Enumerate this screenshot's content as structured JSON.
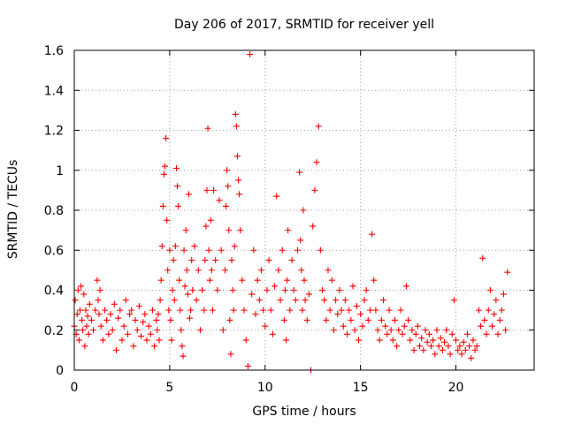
{
  "chart_data": {
    "type": "scatter",
    "title": "Day 206 of 2017, SRMTID for receiver yell",
    "xlabel": "GPS time / hours",
    "ylabel": "SRMTID / TECUs",
    "xlim": [
      0,
      24.1
    ],
    "ylim": [
      0,
      1.6
    ],
    "x_ticks": [
      0,
      5,
      10,
      15,
      20
    ],
    "x_tick_labels": [
      "0",
      "5",
      "10",
      "15",
      "20"
    ],
    "y_ticks": [
      0,
      0.2,
      0.4,
      0.6,
      0.8,
      1.0,
      1.2,
      1.4,
      1.6
    ],
    "y_tick_labels": [
      "0",
      "0.2",
      "0.4",
      "0.6",
      "0.8",
      "1",
      "1.2",
      "1.4",
      "1.6"
    ],
    "grid": true,
    "marker": "+",
    "color": "#ff0000",
    "series": [
      {
        "name": "SRMTID",
        "x": [
          0.0,
          0.05,
          0.1,
          0.15,
          0.2,
          0.25,
          0.3,
          0.35,
          0.4,
          0.45,
          0.5,
          0.55,
          0.6,
          0.65,
          0.7,
          0.75,
          0.8,
          0.9,
          1.0,
          1.1,
          1.2,
          1.25,
          1.3,
          1.35,
          1.4,
          1.5,
          1.6,
          1.7,
          1.8,
          1.9,
          2.0,
          2.1,
          2.2,
          2.3,
          2.4,
          2.5,
          2.6,
          2.7,
          2.8,
          2.9,
          3.0,
          3.1,
          3.2,
          3.3,
          3.4,
          3.5,
          3.6,
          3.7,
          3.8,
          3.9,
          4.0,
          4.1,
          4.2,
          4.3,
          4.35,
          4.4,
          4.45,
          4.5,
          4.55,
          4.6,
          4.65,
          4.7,
          4.75,
          4.8,
          4.85,
          4.9,
          4.95,
          5.0,
          5.05,
          5.1,
          5.15,
          5.2,
          5.25,
          5.3,
          5.35,
          5.4,
          5.45,
          5.5,
          5.55,
          5.6,
          5.65,
          5.7,
          5.75,
          5.8,
          5.85,
          5.9,
          5.95,
          6.0,
          6.05,
          6.1,
          6.15,
          6.2,
          6.3,
          6.4,
          6.5,
          6.6,
          6.7,
          6.8,
          6.85,
          6.9,
          6.95,
          7.0,
          7.05,
          7.1,
          7.15,
          7.2,
          7.25,
          7.3,
          7.4,
          7.5,
          7.6,
          7.7,
          7.8,
          7.9,
          7.95,
          8.0,
          8.05,
          8.1,
          8.15,
          8.2,
          8.25,
          8.3,
          8.35,
          8.4,
          8.45,
          8.5,
          8.55,
          8.6,
          8.65,
          8.7,
          8.8,
          8.9,
          9.0,
          9.1,
          9.2,
          9.3,
          9.4,
          9.5,
          9.6,
          9.7,
          9.8,
          9.9,
          10.0,
          10.1,
          10.2,
          10.3,
          10.4,
          10.5,
          10.6,
          10.7,
          10.8,
          10.9,
          11.0,
          11.05,
          11.1,
          11.15,
          11.2,
          11.3,
          11.4,
          11.5,
          11.6,
          11.7,
          11.8,
          11.85,
          11.9,
          11.95,
          12.0,
          12.05,
          12.1,
          12.2,
          12.3,
          12.4,
          12.5,
          12.6,
          12.7,
          12.8,
          12.9,
          13.0,
          13.1,
          13.2,
          13.3,
          13.4,
          13.5,
          13.6,
          13.7,
          13.8,
          13.9,
          14.0,
          14.1,
          14.2,
          14.3,
          14.4,
          14.5,
          14.6,
          14.7,
          14.8,
          14.9,
          15.0,
          15.1,
          15.2,
          15.3,
          15.4,
          15.5,
          15.6,
          15.7,
          15.8,
          15.9,
          16.0,
          16.1,
          16.2,
          16.3,
          16.4,
          16.5,
          16.6,
          16.7,
          16.8,
          16.9,
          17.0,
          17.1,
          17.2,
          17.3,
          17.4,
          17.5,
          17.6,
          17.7,
          17.8,
          17.9,
          18.0,
          18.1,
          18.2,
          18.3,
          18.4,
          18.5,
          18.6,
          18.7,
          18.8,
          18.9,
          19.0,
          19.1,
          19.2,
          19.3,
          19.4,
          19.5,
          19.6,
          19.7,
          19.8,
          19.9,
          20.0,
          20.1,
          20.2,
          20.3,
          20.4,
          20.5,
          20.6,
          20.7,
          20.8,
          20.9,
          21.0,
          21.1,
          21.2,
          21.3,
          21.4,
          21.5,
          21.6,
          21.7,
          21.8,
          21.9,
          22.0,
          22.1,
          22.2,
          22.3,
          22.4,
          22.5,
          22.6,
          22.7
        ],
        "y": [
          0.22,
          0.35,
          0.18,
          0.28,
          0.4,
          0.15,
          0.3,
          0.42,
          0.25,
          0.2,
          0.38,
          0.12,
          0.3,
          0.22,
          0.27,
          0.18,
          0.33,
          0.25,
          0.2,
          0.3,
          0.45,
          0.35,
          0.28,
          0.4,
          0.22,
          0.15,
          0.3,
          0.25,
          0.18,
          0.28,
          0.2,
          0.33,
          0.1,
          0.26,
          0.3,
          0.15,
          0.22,
          0.35,
          0.18,
          0.28,
          0.3,
          0.12,
          0.25,
          0.2,
          0.32,
          0.17,
          0.24,
          0.28,
          0.15,
          0.22,
          0.18,
          0.3,
          0.12,
          0.25,
          0.2,
          0.28,
          0.15,
          0.35,
          0.45,
          0.62,
          0.82,
          0.98,
          1.02,
          1.16,
          0.75,
          0.5,
          0.3,
          0.6,
          0.25,
          0.15,
          0.4,
          0.55,
          0.35,
          0.62,
          1.01,
          0.92,
          0.82,
          0.45,
          0.3,
          0.2,
          0.12,
          0.07,
          0.6,
          0.42,
          0.7,
          0.5,
          0.38,
          0.88,
          0.26,
          0.3,
          0.55,
          0.4,
          0.62,
          0.35,
          0.5,
          0.2,
          0.4,
          0.3,
          0.55,
          0.72,
          0.9,
          1.21,
          0.6,
          0.45,
          0.75,
          0.5,
          0.3,
          0.9,
          0.55,
          0.4,
          0.85,
          0.6,
          0.2,
          0.5,
          0.82,
          1.0,
          0.92,
          0.7,
          0.25,
          0.08,
          0.55,
          0.4,
          0.3,
          0.62,
          1.28,
          1.22,
          1.07,
          0.95,
          0.88,
          0.7,
          0.45,
          0.3,
          0.15,
          0.02,
          1.58,
          0.38,
          0.6,
          0.28,
          0.45,
          0.35,
          0.5,
          0.3,
          0.22,
          0.4,
          0.55,
          0.3,
          0.18,
          0.42,
          0.87,
          0.5,
          0.35,
          0.6,
          0.25,
          0.4,
          0.15,
          0.45,
          0.7,
          0.3,
          0.55,
          0.4,
          0.35,
          0.6,
          0.99,
          0.65,
          0.5,
          0.3,
          0.8,
          0.45,
          0.35,
          0.25,
          0.38,
          0.0,
          0.72,
          0.9,
          1.04,
          1.22,
          0.6,
          0.4,
          0.35,
          0.25,
          0.5,
          0.3,
          0.45,
          0.2,
          0.35,
          0.28,
          0.4,
          0.3,
          0.22,
          0.35,
          0.18,
          0.3,
          0.25,
          0.42,
          0.2,
          0.32,
          0.15,
          0.28,
          0.22,
          0.35,
          0.4,
          0.25,
          0.3,
          0.68,
          0.45,
          0.3,
          0.2,
          0.15,
          0.25,
          0.35,
          0.22,
          0.18,
          0.3,
          0.2,
          0.15,
          0.25,
          0.12,
          0.2,
          0.3,
          0.18,
          0.22,
          0.42,
          0.25,
          0.15,
          0.2,
          0.1,
          0.18,
          0.22,
          0.12,
          0.16,
          0.1,
          0.2,
          0.14,
          0.18,
          0.12,
          0.15,
          0.08,
          0.2,
          0.12,
          0.16,
          0.1,
          0.14,
          0.2,
          0.12,
          0.08,
          0.18,
          0.35,
          0.15,
          0.1,
          0.12,
          0.08,
          0.14,
          0.1,
          0.18,
          0.12,
          0.06,
          0.15,
          0.1,
          0.12,
          0.3,
          0.22,
          0.56,
          0.25,
          0.18,
          0.3,
          0.4,
          0.22,
          0.28,
          0.35,
          0.18,
          0.25,
          0.3,
          0.38,
          0.2,
          0.49
        ]
      }
    ]
  }
}
